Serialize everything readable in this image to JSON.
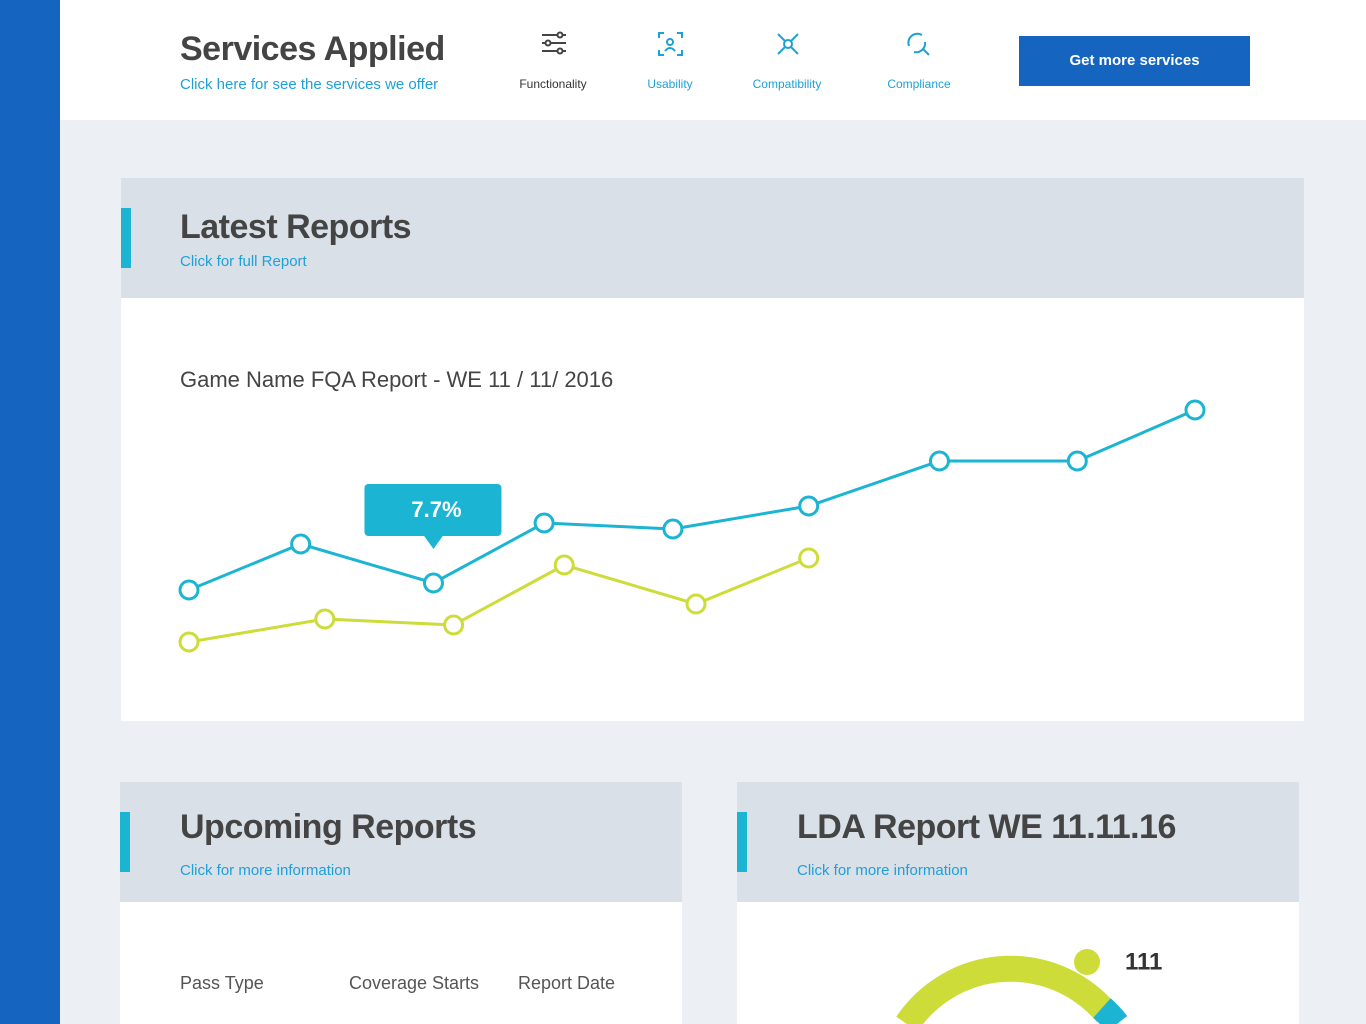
{
  "header": {
    "title": "Services Applied",
    "subtitle": "Click here for see the services we offer",
    "nav": [
      "Functionality",
      "Usability",
      "Compatibility",
      "Compliance"
    ],
    "button": "Get more services"
  },
  "latest": {
    "title": "Latest Reports",
    "link": "Click for full Report"
  },
  "chart_data": {
    "type": "line",
    "title": "Game Name FQA Report - WE 11 / 11/ 2016",
    "xlim": [
      0,
      10
    ],
    "ylim": [
      3.85,
      16.85
    ],
    "series": [
      {
        "color": "#1bb5d3",
        "x": [
          0,
          1.11,
          2.43,
          3.53,
          4.81,
          6.16,
          7.46,
          8.83,
          10
        ],
        "values": [
          7.35,
          9.65,
          7.7,
          10.7,
          10.4,
          11.55,
          13.8,
          13.8,
          16.35
        ],
        "value_labels": [
          null,
          null,
          "7.7%",
          null,
          null,
          null,
          null,
          null,
          null
        ]
      },
      {
        "color": "#cddc39",
        "x": [
          0,
          1.35,
          2.63,
          3.73,
          5.04,
          6.16
        ],
        "values": [
          4.75,
          5.9,
          5.6,
          8.6,
          6.65,
          8.95
        ]
      }
    ]
  },
  "upcoming": {
    "title": "Upcoming Reports",
    "link": "Click for more information",
    "columns": [
      "Pass Type",
      "Coverage Starts",
      "Report Date"
    ]
  },
  "lda": {
    "title": "LDA Report WE 11.11.16",
    "link": "Click for more information",
    "legend": [
      {
        "label": "111",
        "color": "#cddc39"
      }
    ]
  }
}
